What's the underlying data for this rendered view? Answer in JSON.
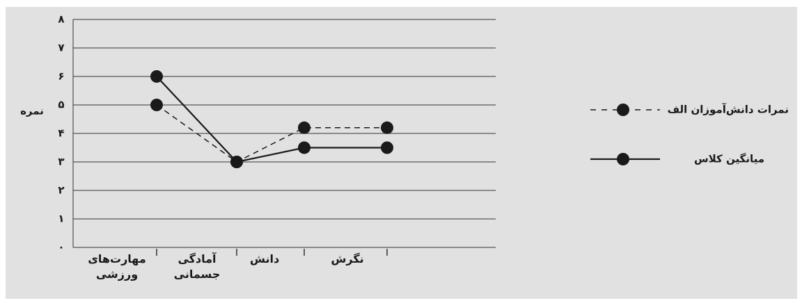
{
  "chart_data": {
    "type": "line",
    "ylabel": "نمره",
    "categories": [
      "مهارت‌های ورزشی",
      "آمادگی جسمانی",
      "دانش",
      "نگرش"
    ],
    "series": [
      {
        "name": "نمرات دانش‌آموزان الف",
        "color": "#1a1a1a",
        "dash": true,
        "values": [
          5,
          3,
          4.2,
          4.2
        ]
      },
      {
        "name": "میانگین کلاس",
        "color": "#1a1a1a",
        "dash": false,
        "values": [
          6,
          3,
          3.5,
          3.5
        ]
      }
    ],
    "ylim": [
      0,
      8
    ],
    "yticks": [
      {
        "value": 0,
        "label": "۰"
      },
      {
        "value": 1,
        "label": "۱"
      },
      {
        "value": 2,
        "label": "۲"
      },
      {
        "value": 3,
        "label": "۳"
      },
      {
        "value": 4,
        "label": "۴"
      },
      {
        "value": 5,
        "label": "۵"
      },
      {
        "value": 6,
        "label": "۶"
      },
      {
        "value": 7,
        "label": "۷"
      },
      {
        "value": 8,
        "label": "۸"
      }
    ],
    "grid": true,
    "legend": "right"
  }
}
